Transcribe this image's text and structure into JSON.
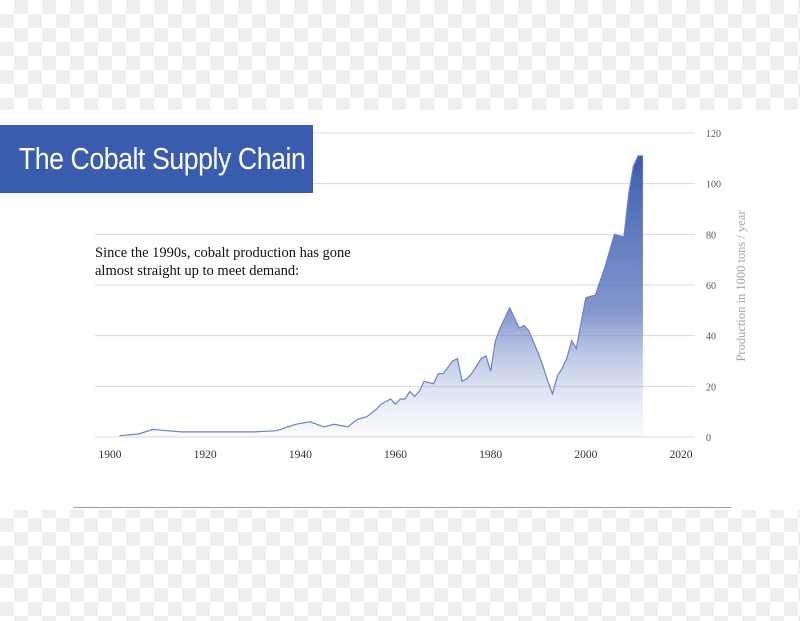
{
  "title": "The Cobalt Supply Chain",
  "caption": [
    "Since the 1990s, cobalt production has gone",
    "almost straight up to meet demand:"
  ],
  "colors": {
    "banner": "#3a5cae",
    "area_top": "#3a5cae",
    "line": "#6b82c4"
  },
  "chart_data": {
    "type": "area",
    "title": "",
    "xlabel": "",
    "ylabel": "Production in 1000 tons / year",
    "xlim": [
      1900,
      2020
    ],
    "ylim": [
      0,
      120
    ],
    "x_ticks": [
      1900,
      1920,
      1940,
      1960,
      1980,
      2000,
      2020
    ],
    "y_ticks": [
      0,
      20,
      40,
      60,
      80,
      100,
      120
    ],
    "grid": "horizontal",
    "x": [
      1902,
      1906,
      1909,
      1912,
      1915,
      1920,
      1925,
      1930,
      1935,
      1939,
      1942,
      1945,
      1947,
      1950,
      1952,
      1954,
      1956,
      1957,
      1958,
      1959,
      1960,
      1961,
      1962,
      1963,
      1964,
      1965,
      1966,
      1968,
      1969,
      1970,
      1972,
      1973,
      1974,
      1975,
      1976,
      1978,
      1979,
      1980,
      1981,
      1982,
      1984,
      1986,
      1987,
      1988,
      1990,
      1991,
      1992,
      1993,
      1994,
      1995,
      1996,
      1997,
      1998,
      2000,
      2002,
      2004,
      2006,
      2008,
      2009,
      2010,
      2011,
      2012
    ],
    "values": [
      0.5,
      1.2,
      3,
      2.5,
      2,
      2,
      2,
      2,
      2.5,
      5,
      6,
      4,
      5,
      4,
      7,
      8,
      11,
      13,
      14,
      15,
      13,
      15,
      15,
      18,
      16,
      18,
      22,
      21,
      25,
      25,
      30,
      31,
      22,
      23,
      25,
      31,
      32,
      26,
      38,
      43,
      51,
      43,
      44,
      42,
      33,
      28,
      22,
      17,
      24,
      27,
      31,
      38,
      35,
      55,
      56,
      67,
      80,
      79,
      96,
      107,
      111,
      111
    ]
  }
}
